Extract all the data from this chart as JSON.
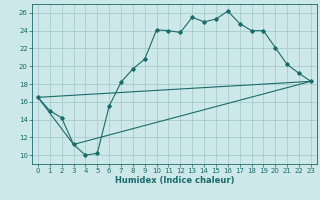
{
  "xlabel": "Humidex (Indice chaleur)",
  "bg_color": "#cde8e8",
  "grid_color": "#aacccc",
  "line_color": "#1a6b6b",
  "xlim": [
    -0.5,
    23.5
  ],
  "ylim": [
    9,
    27
  ],
  "xticks": [
    0,
    1,
    2,
    3,
    4,
    5,
    6,
    7,
    8,
    9,
    10,
    11,
    12,
    13,
    14,
    15,
    16,
    17,
    18,
    19,
    20,
    21,
    22,
    23
  ],
  "yticks": [
    10,
    12,
    14,
    16,
    18,
    20,
    22,
    24,
    26
  ],
  "line1": {
    "x": [
      0,
      1,
      2,
      3,
      4,
      5,
      6,
      7,
      8,
      9,
      10,
      11,
      12,
      13,
      14,
      15,
      16,
      17,
      18,
      19,
      20,
      21,
      22,
      23
    ],
    "y": [
      16.5,
      15.0,
      14.2,
      11.2,
      10.0,
      10.2,
      15.5,
      18.2,
      19.7,
      20.8,
      24.1,
      24.0,
      23.8,
      25.5,
      25.0,
      25.3,
      26.2,
      24.8,
      24.0,
      24.0,
      22.1,
      20.2,
      19.2,
      18.3
    ]
  },
  "line2": {
    "x": [
      0,
      3,
      23
    ],
    "y": [
      16.5,
      11.2,
      18.3
    ]
  },
  "line3": {
    "x": [
      0,
      23
    ],
    "y": [
      16.5,
      18.3
    ]
  }
}
